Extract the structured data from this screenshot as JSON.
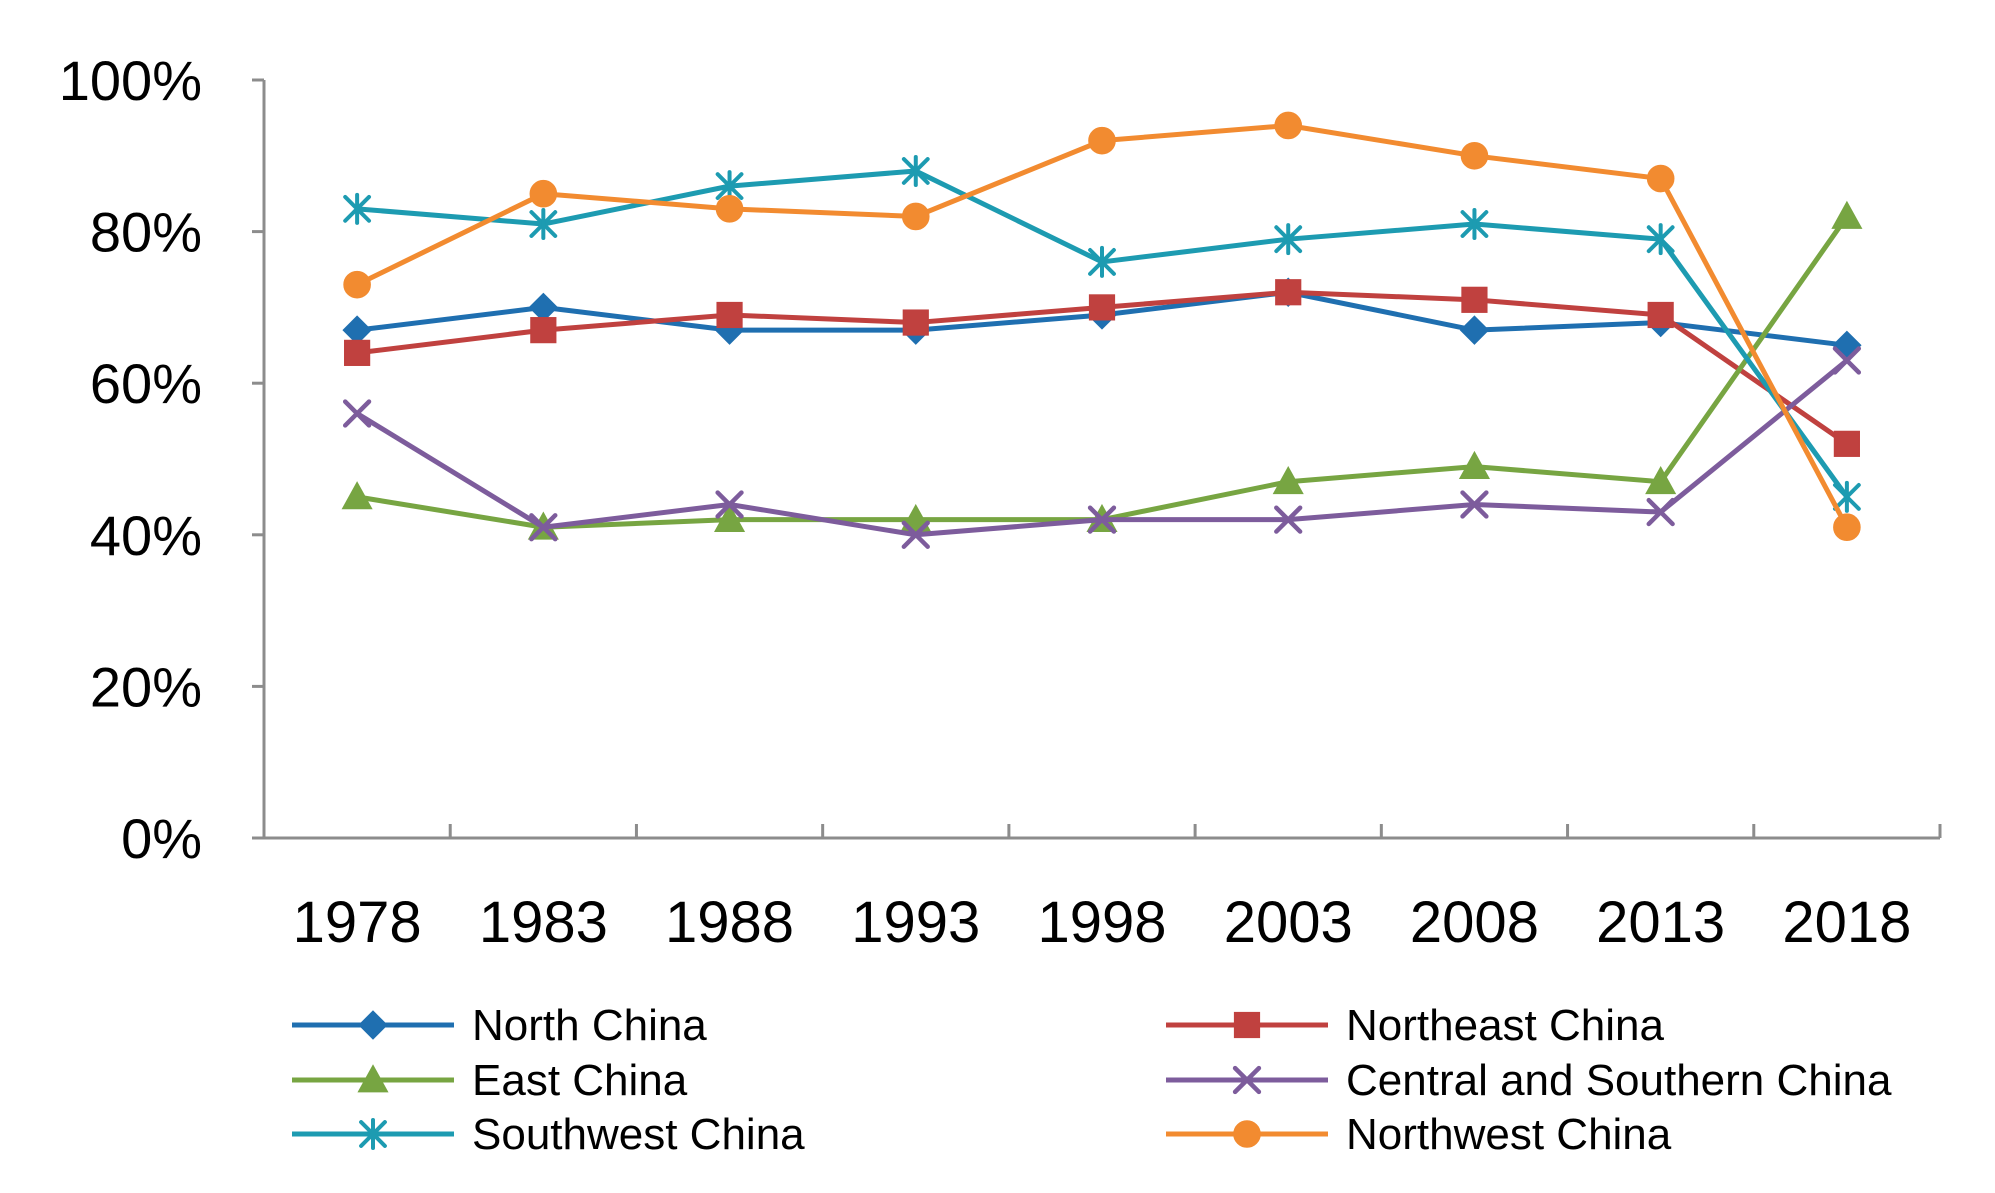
{
  "chart_data": {
    "type": "line",
    "title": "",
    "xlabel": "",
    "ylabel": "",
    "categories": [
      "1978",
      "1983",
      "1988",
      "1993",
      "1998",
      "2003",
      "2008",
      "2013",
      "2018"
    ],
    "ylim": [
      0,
      100
    ],
    "yticks": [
      "0%",
      "20%",
      "40%",
      "60%",
      "80%",
      "100%"
    ],
    "grid": false,
    "legend_position": "bottom",
    "series": [
      {
        "name": "North China",
        "color": "#1F6FB0",
        "marker": "diamond",
        "values": [
          67,
          70,
          67,
          67,
          69,
          72,
          67,
          68,
          65
        ]
      },
      {
        "name": "Northeast China",
        "color": "#C0413F",
        "marker": "square",
        "values": [
          64,
          67,
          69,
          68,
          70,
          72,
          71,
          69,
          52
        ]
      },
      {
        "name": "East China",
        "color": "#77A542",
        "marker": "triangle",
        "values": [
          45,
          41,
          42,
          42,
          42,
          47,
          49,
          47,
          82
        ]
      },
      {
        "name": "Central and Southern China",
        "color": "#7D5C9C",
        "marker": "x",
        "values": [
          56,
          41,
          44,
          40,
          42,
          42,
          44,
          43,
          63
        ]
      },
      {
        "name": "Southwest China",
        "color": "#1D9BB1",
        "marker": "star",
        "values": [
          83,
          81,
          86,
          88,
          76,
          79,
          81,
          79,
          45
        ]
      },
      {
        "name": "Northwest China",
        "color": "#F28B30",
        "marker": "circle",
        "values": [
          73,
          85,
          83,
          82,
          92,
          94,
          90,
          87,
          41
        ]
      }
    ]
  }
}
